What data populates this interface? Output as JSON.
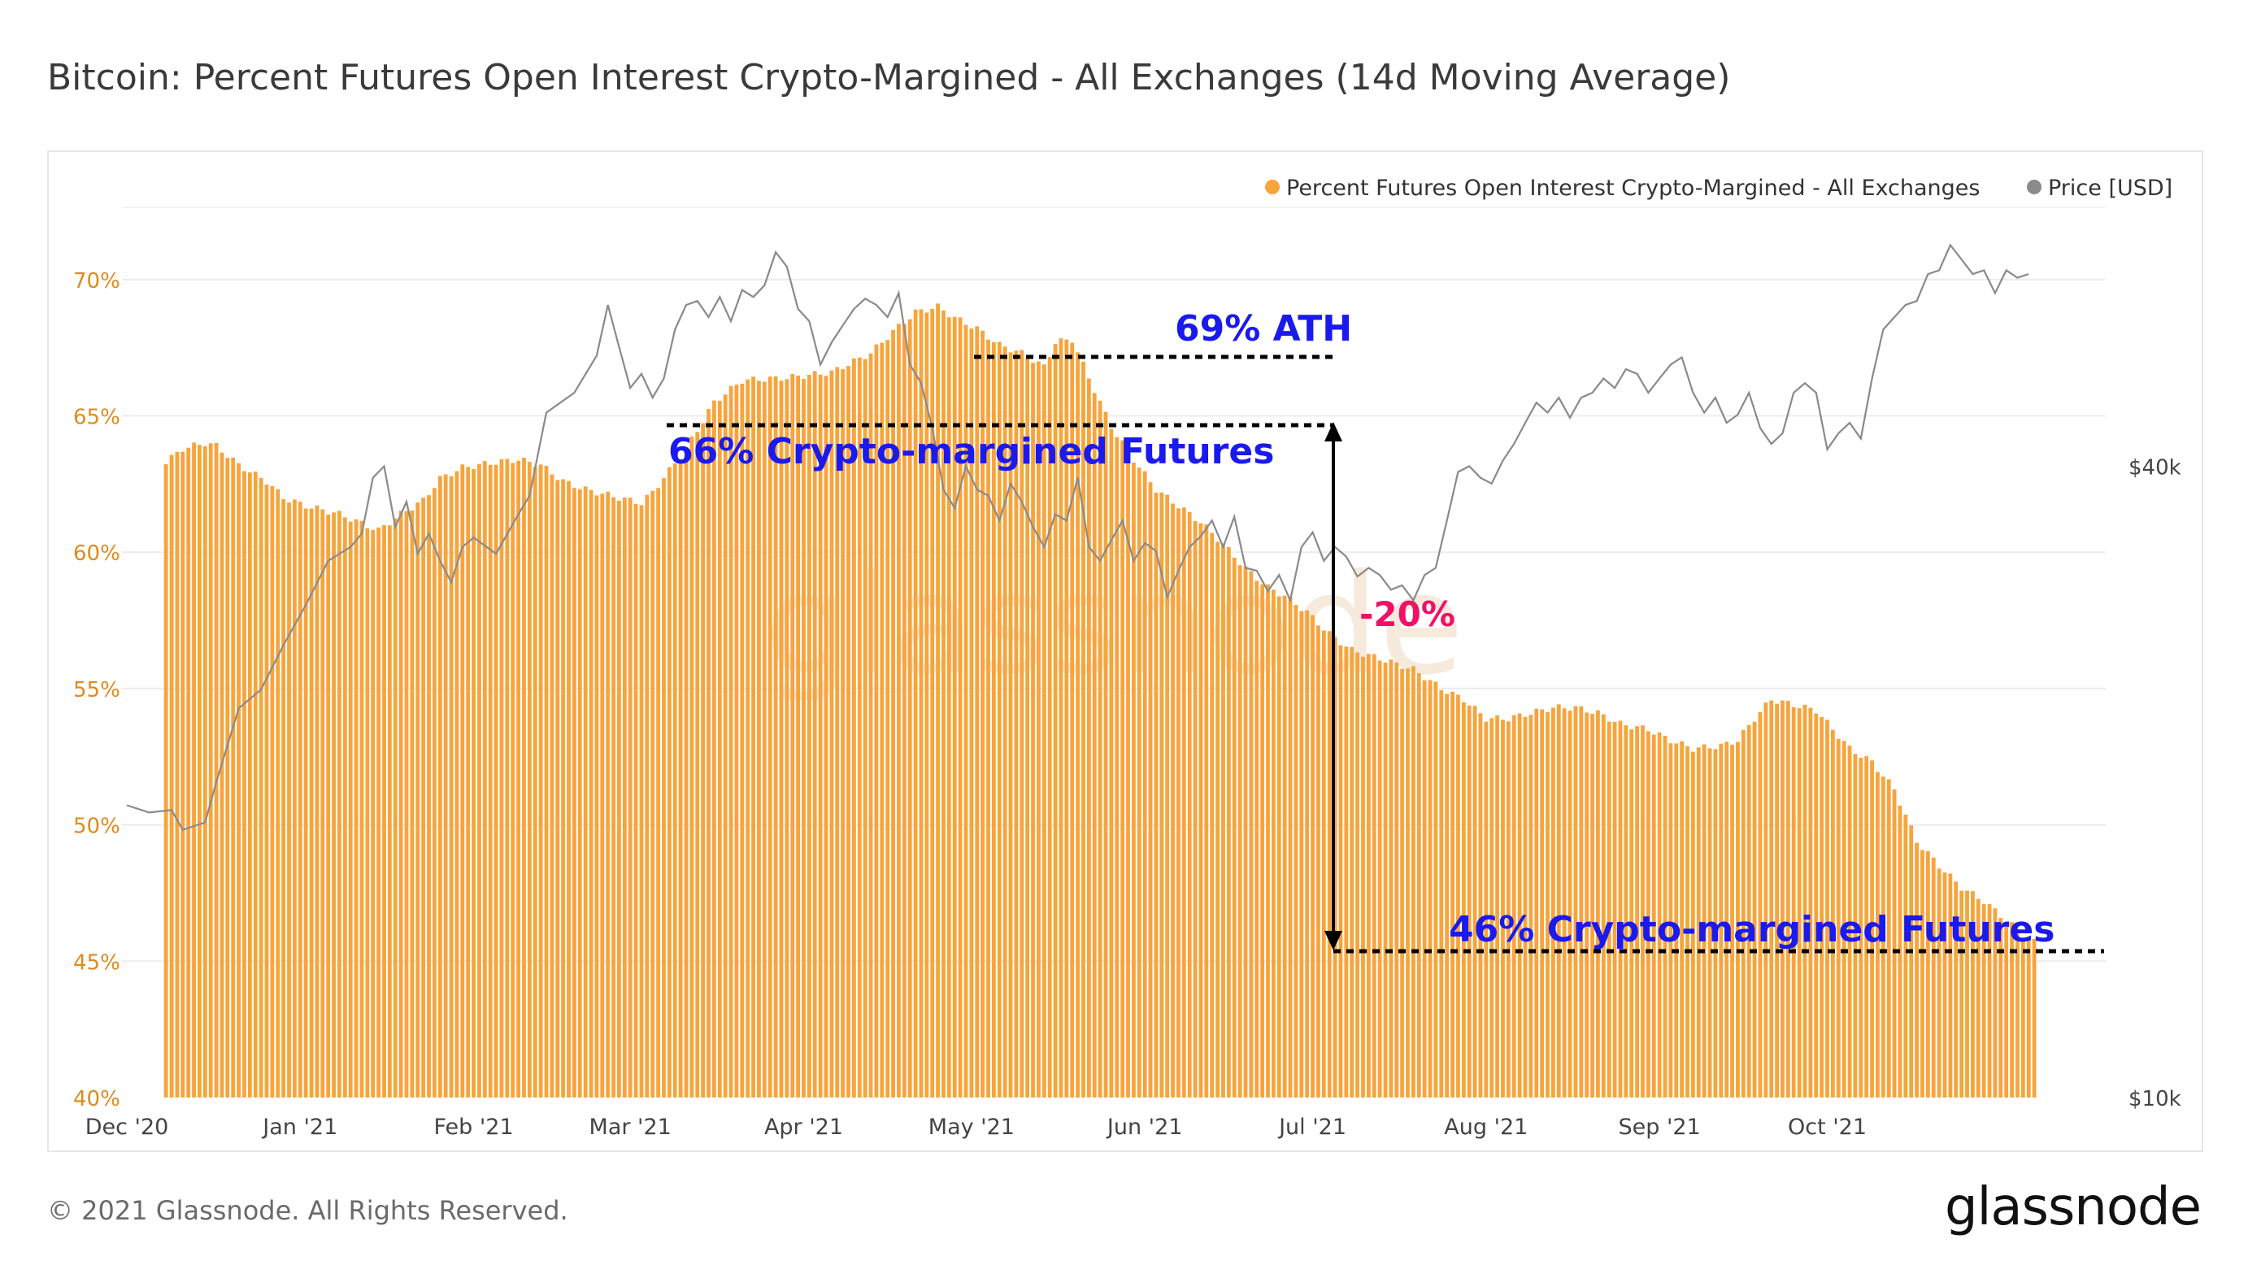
{
  "title": "Bitcoin: Percent Futures Open Interest Crypto-Margined - All Exchanges (14d Moving Average)",
  "footer": {
    "copyright": "© 2021 Glassnode. All Rights Reserved.",
    "logo": "glassnode"
  },
  "watermark": "glassnode",
  "colors": {
    "bar": "#f7a43c",
    "price": "#8a8a8a",
    "annotation_blue": "#1a1aee",
    "annotation_red": "#ee1166",
    "axis_left": "#e08a1e"
  },
  "chart_data": {
    "type": "bar",
    "title": "Bitcoin: Percent Futures Open Interest Crypto-Margined - All Exchanges (14d Moving Average)",
    "legend": [
      {
        "label": "Percent Futures Open Interest Crypto-Margined - All Exchanges",
        "color": "#f7a43c"
      },
      {
        "label": "Price [USD]",
        "color": "#8a8a8a"
      }
    ],
    "legend_position": "top-right",
    "x_ticks": [
      "Dec '20",
      "Jan '21",
      "Feb '21",
      "Mar '21",
      "Apr '21",
      "May '21",
      "Jun '21",
      "Jul '21",
      "Aug '21",
      "Sep '21",
      "Oct '21"
    ],
    "y_left": {
      "ticks": [
        "40%",
        "45%",
        "50%",
        "55%",
        "60%",
        "65%",
        "70%"
      ],
      "range": [
        40,
        72.5
      ]
    },
    "y_right": {
      "ticks": [
        "$10k",
        "$40k"
      ],
      "scale": "log",
      "range": [
        10000,
        70000
      ]
    },
    "date_range": [
      "2020-12-01",
      "2021-10-31"
    ],
    "series": [
      {
        "name": "Percent Futures Open Interest Crypto-Margined - All Exchanges",
        "axis": "left",
        "kind": "bar",
        "start_day": 7,
        "keypoints": [
          [
            7,
            63.3
          ],
          [
            10,
            63.8
          ],
          [
            14,
            64.0
          ],
          [
            16,
            63.9
          ],
          [
            20,
            63.2
          ],
          [
            25,
            62.6
          ],
          [
            28,
            62.0
          ],
          [
            32,
            61.7
          ],
          [
            38,
            61.4
          ],
          [
            45,
            60.8
          ],
          [
            49,
            61.4
          ],
          [
            53,
            61.9
          ],
          [
            56,
            62.7
          ],
          [
            60,
            63.1
          ],
          [
            66,
            63.3
          ],
          [
            70,
            63.4
          ],
          [
            74,
            63.2
          ],
          [
            78,
            62.6
          ],
          [
            82,
            62.3
          ],
          [
            88,
            62.0
          ],
          [
            92,
            61.8
          ],
          [
            94,
            62.2
          ],
          [
            97,
            63.0
          ],
          [
            100,
            63.8
          ],
          [
            105,
            65.5
          ],
          [
            110,
            66.3
          ],
          [
            118,
            66.4
          ],
          [
            126,
            66.6
          ],
          [
            133,
            67.3
          ],
          [
            137,
            68.1
          ],
          [
            141,
            68.8
          ],
          [
            145,
            69.0
          ],
          [
            148,
            68.6
          ],
          [
            152,
            68.2
          ],
          [
            156,
            67.6
          ],
          [
            160,
            67.3
          ],
          [
            164,
            66.8
          ],
          [
            166,
            67.7
          ],
          [
            169,
            67.8
          ],
          [
            172,
            66.4
          ],
          [
            176,
            64.6
          ],
          [
            180,
            63.4
          ],
          [
            184,
            62.3
          ],
          [
            188,
            61.7
          ],
          [
            192,
            61.1
          ],
          [
            196,
            60.3
          ],
          [
            200,
            59.4
          ],
          [
            204,
            58.7
          ],
          [
            207,
            58.4
          ],
          [
            211,
            57.8
          ],
          [
            215,
            57.0
          ],
          [
            219,
            56.4
          ],
          [
            224,
            56.1
          ],
          [
            230,
            55.7
          ],
          [
            235,
            55.0
          ],
          [
            239,
            54.6
          ],
          [
            243,
            53.9
          ],
          [
            247,
            53.9
          ],
          [
            251,
            54.1
          ],
          [
            255,
            54.3
          ],
          [
            259,
            54.3
          ],
          [
            263,
            54.1
          ],
          [
            267,
            53.7
          ],
          [
            272,
            53.5
          ],
          [
            276,
            53.1
          ],
          [
            280,
            52.8
          ],
          [
            285,
            52.9
          ],
          [
            288,
            53.1
          ],
          [
            291,
            53.9
          ],
          [
            294,
            54.6
          ],
          [
            298,
            54.4
          ],
          [
            302,
            54.2
          ],
          [
            305,
            53.5
          ],
          [
            308,
            52.8
          ],
          [
            312,
            52.3
          ],
          [
            316,
            51.3
          ],
          [
            320,
            49.4
          ],
          [
            324,
            48.5
          ],
          [
            328,
            47.7
          ],
          [
            332,
            47.2
          ],
          [
            336,
            46.5
          ],
          [
            340,
            45.8
          ],
          [
            341,
            45.7
          ]
        ]
      },
      {
        "name": "Price [USD]",
        "axis": "right",
        "kind": "line",
        "start_day": 0,
        "keypoints": [
          [
            0,
            19000
          ],
          [
            4,
            18700
          ],
          [
            8,
            18800
          ],
          [
            10,
            18000
          ],
          [
            14,
            18300
          ],
          [
            16,
            20000
          ],
          [
            20,
            23500
          ],
          [
            24,
            24500
          ],
          [
            28,
            27000
          ],
          [
            32,
            29500
          ],
          [
            36,
            32500
          ],
          [
            40,
            33500
          ],
          [
            42,
            34500
          ],
          [
            44,
            39000
          ],
          [
            46,
            40000
          ],
          [
            48,
            35000
          ],
          [
            50,
            37000
          ],
          [
            52,
            33000
          ],
          [
            54,
            34500
          ],
          [
            56,
            32500
          ],
          [
            58,
            31000
          ],
          [
            60,
            33500
          ],
          [
            62,
            34200
          ],
          [
            66,
            33000
          ],
          [
            70,
            36000
          ],
          [
            72,
            37500
          ],
          [
            75,
            45000
          ],
          [
            80,
            47000
          ],
          [
            84,
            51000
          ],
          [
            86,
            57000
          ],
          [
            88,
            52000
          ],
          [
            90,
            47500
          ],
          [
            92,
            49000
          ],
          [
            94,
            46500
          ],
          [
            96,
            48500
          ],
          [
            98,
            54000
          ],
          [
            100,
            57000
          ],
          [
            102,
            57500
          ],
          [
            104,
            55500
          ],
          [
            106,
            58000
          ],
          [
            108,
            55000
          ],
          [
            110,
            58900
          ],
          [
            112,
            58000
          ],
          [
            114,
            59500
          ],
          [
            116,
            64000
          ],
          [
            118,
            62000
          ],
          [
            120,
            56500
          ],
          [
            122,
            55000
          ],
          [
            124,
            50000
          ],
          [
            126,
            52500
          ],
          [
            128,
            54500
          ],
          [
            130,
            56500
          ],
          [
            132,
            57800
          ],
          [
            134,
            57000
          ],
          [
            136,
            55500
          ],
          [
            138,
            58500
          ],
          [
            140,
            50000
          ],
          [
            142,
            48000
          ],
          [
            144,
            43500
          ],
          [
            146,
            38000
          ],
          [
            148,
            36500
          ],
          [
            150,
            40000
          ],
          [
            152,
            38000
          ],
          [
            154,
            37500
          ],
          [
            156,
            35500
          ],
          [
            158,
            38500
          ],
          [
            160,
            37000
          ],
          [
            162,
            35000
          ],
          [
            164,
            33500
          ],
          [
            166,
            36000
          ],
          [
            168,
            35500
          ],
          [
            170,
            39000
          ],
          [
            172,
            33500
          ],
          [
            174,
            32500
          ],
          [
            176,
            34000
          ],
          [
            178,
            35500
          ],
          [
            180,
            32500
          ],
          [
            182,
            33800
          ],
          [
            184,
            33200
          ],
          [
            186,
            30000
          ],
          [
            188,
            31800
          ],
          [
            190,
            33500
          ],
          [
            192,
            34300
          ],
          [
            194,
            35500
          ],
          [
            196,
            33500
          ],
          [
            198,
            35800
          ],
          [
            200,
            32000
          ],
          [
            202,
            31800
          ],
          [
            204,
            30400
          ],
          [
            206,
            31500
          ],
          [
            208,
            29800
          ],
          [
            210,
            33500
          ],
          [
            212,
            34600
          ],
          [
            214,
            32500
          ],
          [
            216,
            33500
          ],
          [
            218,
            32800
          ],
          [
            220,
            31400
          ],
          [
            222,
            32000
          ],
          [
            224,
            31500
          ],
          [
            226,
            30500
          ],
          [
            228,
            30800
          ],
          [
            230,
            29800
          ],
          [
            232,
            31500
          ],
          [
            234,
            32000
          ],
          [
            236,
            35500
          ],
          [
            238,
            39500
          ],
          [
            240,
            40000
          ],
          [
            242,
            39000
          ],
          [
            244,
            38500
          ],
          [
            246,
            40500
          ],
          [
            248,
            42000
          ],
          [
            250,
            44000
          ],
          [
            252,
            46000
          ],
          [
            254,
            45000
          ],
          [
            256,
            46500
          ],
          [
            258,
            44500
          ],
          [
            260,
            46500
          ],
          [
            262,
            47000
          ],
          [
            264,
            48500
          ],
          [
            266,
            47500
          ],
          [
            268,
            49500
          ],
          [
            270,
            49000
          ],
          [
            272,
            47000
          ],
          [
            274,
            48500
          ],
          [
            276,
            50000
          ],
          [
            278,
            50800
          ],
          [
            280,
            47000
          ],
          [
            282,
            45000
          ],
          [
            284,
            46500
          ],
          [
            286,
            44000
          ],
          [
            288,
            44800
          ],
          [
            290,
            47000
          ],
          [
            292,
            43500
          ],
          [
            294,
            42000
          ],
          [
            296,
            43000
          ],
          [
            298,
            47000
          ],
          [
            300,
            48000
          ],
          [
            302,
            47000
          ],
          [
            304,
            41500
          ],
          [
            306,
            43000
          ],
          [
            308,
            44000
          ],
          [
            310,
            42500
          ],
          [
            312,
            48500
          ],
          [
            314,
            54000
          ],
          [
            316,
            55500
          ],
          [
            318,
            57000
          ],
          [
            320,
            57500
          ],
          [
            322,
            61000
          ],
          [
            324,
            61500
          ],
          [
            326,
            65000
          ],
          [
            328,
            63000
          ],
          [
            330,
            61000
          ],
          [
            332,
            61500
          ],
          [
            334,
            58500
          ],
          [
            336,
            61500
          ],
          [
            338,
            60500
          ],
          [
            340,
            61000
          ]
        ]
      }
    ],
    "annotations": {
      "ath": "69% ATH",
      "crypto_66": "66% Crypto-margined Futures",
      "crypto_46": "46% Crypto-margined Futures",
      "drop": "-20%"
    }
  }
}
